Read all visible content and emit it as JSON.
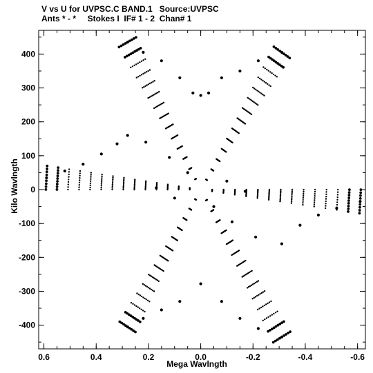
{
  "header": {
    "line1": "V vs U for UVPSC.C BAND.1   Source:UVPSC",
    "line2": "Ants * - *     Stokes I  IF# 1 - 2  Chan# 1"
  },
  "chart_data": {
    "type": "scatter",
    "title": "V vs U for UVPSC.C BAND.1   Source:UVPSC",
    "subtitle": "Ants * - *     Stokes I  IF# 1 - 2  Chan# 1",
    "xlabel": "Mega Wavlngth",
    "ylabel": "Kilo Wavlngth",
    "x_units": "Mega Wavelength (axis reversed: +0.6 left, -0.6 right)",
    "xlim": [
      0.62,
      -0.63
    ],
    "ylim": [
      -470,
      470
    ],
    "x_reversed": true,
    "x_ticks": [
      0.6,
      0.4,
      0.2,
      0.0,
      -0.2,
      -0.4,
      -0.6
    ],
    "x_tick_labels": [
      "0.6",
      "0.4",
      "0.2",
      "0.0",
      "-0.2",
      "-0.4",
      "-0.6"
    ],
    "y_ticks": [
      400,
      300,
      200,
      100,
      0,
      -100,
      -200,
      -300,
      -400
    ],
    "y_tick_labels": [
      "400",
      "300",
      "200",
      "100",
      "0",
      "-100",
      "-200",
      "-300",
      "-400"
    ],
    "grid": false,
    "marker": "dot",
    "pattern": "six-arm star of (u,v) tracks with 180-degree symmetry; outer arm tips near (0.28, 435), (-0.31, 405), (0.59, 35), (-0.61, -35), (0.28, -405), (-0.31, -435)",
    "arms": [
      {
        "tip": [
          0.28,
          435
        ],
        "base": [
          0.0,
          0.0
        ],
        "lines": 9,
        "points": 14
      },
      {
        "tip": [
          -0.31,
          405
        ],
        "base": [
          0.0,
          0.0
        ],
        "lines": 9,
        "points": 14
      },
      {
        "tip": [
          0.59,
          35
        ],
        "base": [
          0.0,
          0.0
        ],
        "lines": 9,
        "points": 14
      },
      {
        "tip": [
          -0.61,
          -35
        ],
        "base": [
          0.0,
          0.0
        ],
        "lines": 9,
        "points": 14
      },
      {
        "tip": [
          0.28,
          -405
        ],
        "base": [
          0.0,
          0.0
        ],
        "lines": 9,
        "points": 14
      },
      {
        "tip": [
          -0.31,
          -435
        ],
        "base": [
          0.0,
          0.0
        ],
        "lines": 9,
        "points": 14
      }
    ],
    "series": [
      {
        "values_sample": [
          [
            0.28,
            435
          ],
          [
            0.22,
            405
          ],
          [
            0.15,
            380
          ],
          [
            0.08,
            330
          ],
          [
            0.03,
            285
          ],
          [
            0.0,
            278
          ],
          [
            -0.03,
            285
          ],
          [
            -0.08,
            330
          ],
          [
            -0.15,
            350
          ],
          [
            -0.22,
            380
          ],
          [
            -0.31,
            405
          ],
          [
            0.59,
            35
          ],
          [
            0.52,
            55
          ],
          [
            0.45,
            75
          ],
          [
            0.38,
            105
          ],
          [
            0.32,
            135
          ],
          [
            0.28,
            160
          ],
          [
            0.21,
            140
          ],
          [
            0.12,
            95
          ],
          [
            0.05,
            50
          ],
          [
            -0.05,
            -50
          ],
          [
            -0.12,
            -95
          ],
          [
            -0.21,
            -140
          ],
          [
            -0.61,
            -35
          ],
          [
            -0.52,
            -55
          ],
          [
            -0.45,
            -75
          ],
          [
            -0.38,
            -105
          ],
          [
            -0.31,
            -160
          ],
          [
            0.28,
            -405
          ],
          [
            0.22,
            -380
          ],
          [
            0.15,
            -355
          ],
          [
            0.08,
            -330
          ],
          [
            0.0,
            -278
          ],
          [
            -0.08,
            -330
          ],
          [
            -0.15,
            -380
          ],
          [
            -0.22,
            -410
          ],
          [
            -0.31,
            -435
          ],
          [
            0.17,
            5
          ],
          [
            -0.17,
            -5
          ],
          [
            0.1,
            -25
          ],
          [
            -0.1,
            25
          ]
        ]
      }
    ]
  }
}
